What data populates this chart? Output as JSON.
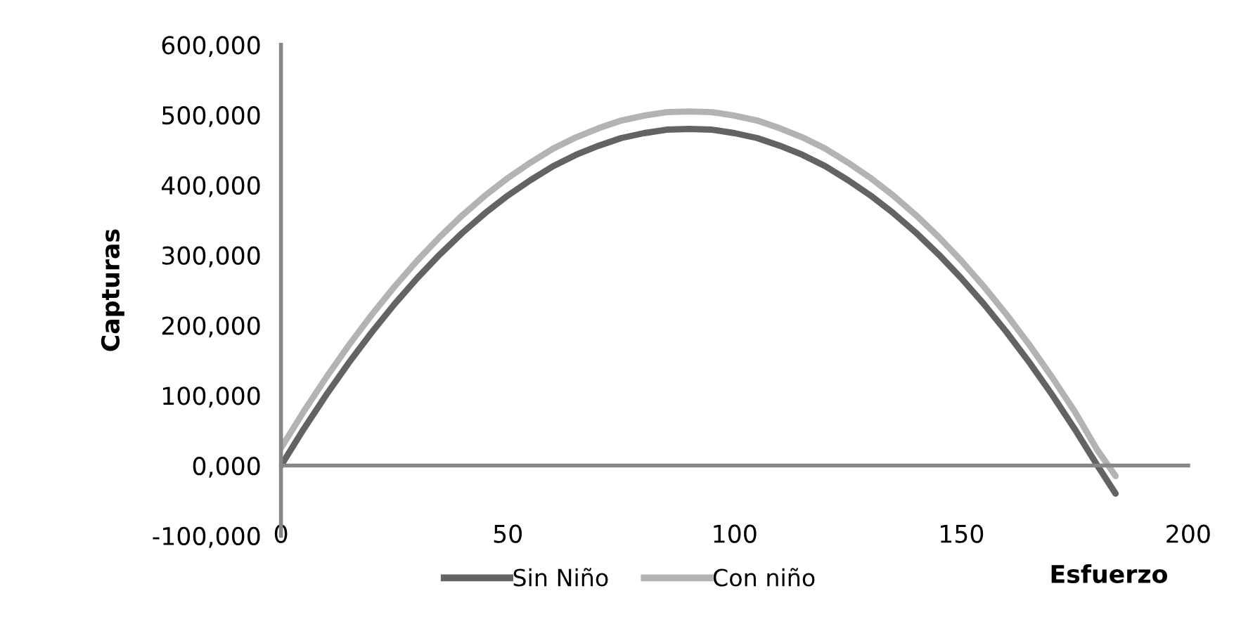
{
  "chart_data": {
    "type": "line",
    "xlabel": "Esfuerzo",
    "ylabel": "Capturas",
    "xlim": [
      0,
      200
    ],
    "xticks": [
      0,
      50,
      100,
      150,
      200
    ],
    "ylim": [
      -100000,
      600000
    ],
    "yticks": [
      {
        "value": -100000,
        "label": "-100,000"
      },
      {
        "value": 0,
        "label": "0,000"
      },
      {
        "value": 100000,
        "label": "100,000"
      },
      {
        "value": 200000,
        "label": "200,000"
      },
      {
        "value": 300000,
        "label": "300,000"
      },
      {
        "value": 400000,
        "label": "400,000"
      },
      {
        "value": 500000,
        "label": "500,000"
      },
      {
        "value": 600000,
        "label": "600,000"
      }
    ],
    "x": [
      0,
      5,
      10,
      15,
      20,
      25,
      30,
      35,
      40,
      45,
      50,
      55,
      60,
      65,
      70,
      75,
      80,
      85,
      90,
      95,
      100,
      105,
      110,
      115,
      120,
      125,
      130,
      135,
      140,
      145,
      150,
      155,
      160,
      165,
      170,
      175,
      180,
      184
    ],
    "series": [
      {
        "name": "Sin Niño",
        "color": "#636363",
        "values": [
          0,
          52000,
          101000,
          147000,
          190000,
          230000,
          267000,
          301000,
          332000,
          360000,
          385000,
          407000,
          427000,
          443000,
          456000,
          467000,
          474000,
          479000,
          480000,
          479000,
          474000,
          467000,
          456000,
          443000,
          427000,
          407000,
          385000,
          360000,
          332000,
          301000,
          267000,
          230000,
          190000,
          147000,
          101000,
          52000,
          0,
          -40000
        ]
      },
      {
        "name": "Con niño",
        "color": "#b3b3b3",
        "values": [
          25000,
          77000,
          126000,
          172000,
          215000,
          255000,
          292000,
          326000,
          357000,
          385000,
          410000,
          432000,
          452000,
          468000,
          481000,
          492000,
          499000,
          504000,
          505000,
          504000,
          499000,
          492000,
          481000,
          468000,
          452000,
          432000,
          410000,
          385000,
          357000,
          326000,
          292000,
          255000,
          215000,
          172000,
          126000,
          77000,
          22000,
          -15000
        ]
      }
    ],
    "grid": false,
    "legend": "bottom",
    "marker": "none",
    "line_style": "solid"
  }
}
